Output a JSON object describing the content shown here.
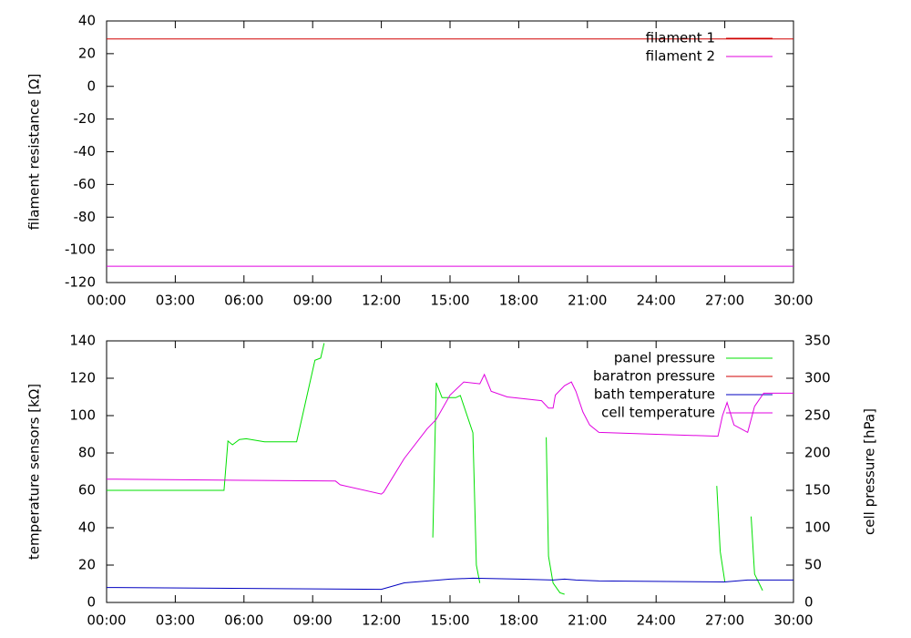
{
  "chart_data": [
    {
      "type": "line",
      "ylabel": "filament resistance [Ω]",
      "legend": "top right",
      "xlim": [
        0,
        30
      ],
      "xticks": [
        {
          "value": 0,
          "label": "00:00"
        },
        {
          "value": 3,
          "label": "03:00"
        },
        {
          "value": 6,
          "label": "06:00"
        },
        {
          "value": 9,
          "label": "09:00"
        },
        {
          "value": 12,
          "label": "12:00"
        },
        {
          "value": 15,
          "label": "15:00"
        },
        {
          "value": 18,
          "label": "18:00"
        },
        {
          "value": 21,
          "label": "21:00"
        },
        {
          "value": 24,
          "label": "24:00"
        },
        {
          "value": 27,
          "label": "27:00"
        },
        {
          "value": 30,
          "label": "30:00"
        }
      ],
      "ylim": [
        -120,
        40
      ],
      "yticks": [
        -120,
        -100,
        -80,
        -60,
        -40,
        -20,
        0,
        20,
        40
      ],
      "series": [
        {
          "name": "filament 1",
          "color": "#d00000",
          "x": [
            0,
            30
          ],
          "values": [
            29,
            29
          ]
        },
        {
          "name": "filament 2",
          "color": "#e000e0",
          "x": [
            0,
            30
          ],
          "values": [
            -110,
            -110
          ]
        }
      ]
    },
    {
      "type": "line",
      "ylabel": "temperature sensors [kΩ]",
      "y2label": "cell pressure [hPa]",
      "legend": "top right",
      "xlim": [
        0,
        30
      ],
      "xticks": [
        {
          "value": 0,
          "label": "00:00"
        },
        {
          "value": 3,
          "label": "03:00"
        },
        {
          "value": 6,
          "label": "06:00"
        },
        {
          "value": 9,
          "label": "09:00"
        },
        {
          "value": 12,
          "label": "12:00"
        },
        {
          "value": 15,
          "label": "15:00"
        },
        {
          "value": 18,
          "label": "18:00"
        },
        {
          "value": 21,
          "label": "21:00"
        },
        {
          "value": 24,
          "label": "24:00"
        },
        {
          "value": 27,
          "label": "27:00"
        },
        {
          "value": 30,
          "label": "30:00"
        }
      ],
      "ylim": [
        0,
        140
      ],
      "yticks": [
        0,
        20,
        40,
        60,
        80,
        100,
        120,
        140
      ],
      "y2lim": [
        0,
        350
      ],
      "y2ticks": [
        0,
        50,
        100,
        150,
        200,
        250,
        300,
        350
      ],
      "series": [
        {
          "name": "panel pressure",
          "color": "#00e000",
          "axis": "y2",
          "x": [
            0,
            5.13,
            5.3,
            5.5,
            5.8,
            6.1,
            6.9,
            8.3,
            9.1,
            9.35,
            9.5,
            12,
            14.25,
            14.4,
            14.65,
            15.25,
            15.45,
            16.0,
            16.15,
            16.3,
            18,
            19.2,
            19.3,
            19.5,
            19.8,
            20.0,
            24,
            26.65,
            26.8,
            27.0,
            27.5,
            28.15,
            28.3,
            28.65
          ],
          "values": [
            150,
            150,
            216,
            211,
            218,
            219,
            215,
            215,
            324,
            327,
            347,
            null,
            87,
            294,
            274,
            274,
            277,
            227,
            50,
            26,
            null,
            221,
            62,
            26,
            13,
            11,
            null,
            156,
            68,
            28,
            null,
            115,
            38,
            16
          ]
        },
        {
          "name": "baratron pressure",
          "color": "#d00000",
          "axis": "y2",
          "x": [],
          "values": []
        },
        {
          "name": "bath temperature",
          "color": "#0000c0",
          "x": [
            0,
            12,
            13,
            15,
            16,
            18,
            19.5,
            20,
            20.5,
            21.5,
            27,
            28,
            30
          ],
          "values": [
            8,
            7,
            10.5,
            12.5,
            13,
            12.5,
            12,
            12.5,
            12,
            11.5,
            11,
            12,
            12
          ]
        },
        {
          "name": "cell temperature",
          "color": "#e000e0",
          "x": [
            0,
            10,
            10.2,
            12,
            12.1,
            13,
            14,
            14.4,
            15,
            15.6,
            16.3,
            16.5,
            16.8,
            17.5,
            19,
            19.3,
            19.5,
            19.6,
            20.0,
            20.3,
            20.5,
            20.8,
            21.1,
            21.5,
            24,
            26.7,
            26.9,
            27.1,
            27.4,
            28.0,
            28.3,
            28.7,
            30
          ],
          "values": [
            66,
            65,
            63,
            58,
            59,
            77,
            93,
            98,
            111,
            118,
            117,
            122,
            113,
            110,
            108,
            104,
            104,
            111,
            116,
            118,
            113,
            102,
            95,
            91,
            90,
            89,
            100,
            107,
            95,
            91,
            105,
            112,
            112
          ]
        }
      ]
    }
  ]
}
